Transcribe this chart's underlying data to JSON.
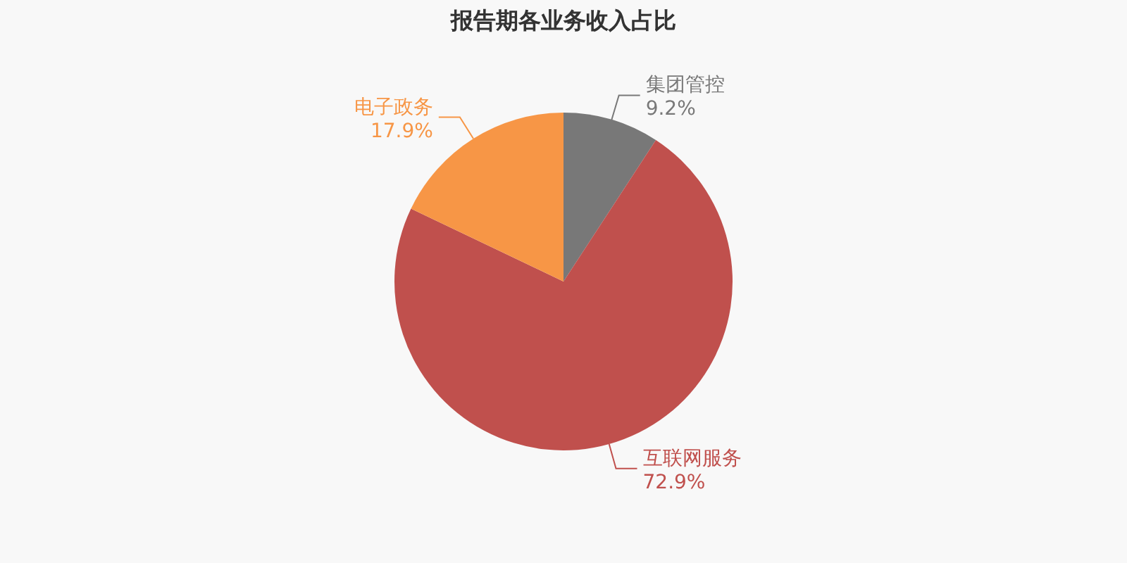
{
  "chart_data": {
    "type": "pie",
    "title": "报告期各业务收入占比",
    "categories": [
      "集团管控",
      "互联网服务",
      "电子政务"
    ],
    "values": [
      9.2,
      72.9,
      17.9
    ],
    "colors": [
      "#787878",
      "#c0504d",
      "#f79646"
    ],
    "value_labels": [
      "9.2%",
      "72.9%",
      "17.9%"
    ],
    "legend": false
  }
}
